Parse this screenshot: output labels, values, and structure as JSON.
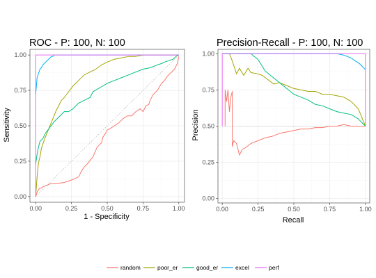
{
  "colors": {
    "random": "#F8766D",
    "poor_er": "#A3A500",
    "good_er": "#00BF7D",
    "excel": "#00B0F6",
    "perf": "#E76BF3",
    "grid_major": "#ebebeb",
    "grid_minor": "#f5f5f5",
    "reference": "#bbbbbb"
  },
  "chart_data": [
    {
      "type": "line",
      "title": "ROC - P: 100, N: 100",
      "xlabel": "1 - Specificity",
      "ylabel": "Sensitivity",
      "xlim": [
        -0.04,
        1.04
      ],
      "ylim": [
        -0.04,
        1.04
      ],
      "xticks": [
        0,
        0.25,
        0.5,
        0.75,
        1
      ],
      "yticks": [
        0,
        0.25,
        0.5,
        0.75,
        1
      ],
      "xtick_labels": [
        "0.00",
        "0.25",
        "0.50",
        "0.75",
        "1.00"
      ],
      "ytick_labels": [
        "0.00",
        "0.25",
        "0.50",
        "0.75",
        "1.00"
      ],
      "reference_line": {
        "style": "dotted",
        "from": [
          0,
          0
        ],
        "to": [
          1,
          1
        ]
      },
      "series": [
        {
          "name": "random",
          "x": [
            0,
            0.01,
            0.02,
            0.03,
            0.04,
            0.05,
            0.08,
            0.1,
            0.13,
            0.2,
            0.26,
            0.3,
            0.32,
            0.34,
            0.36,
            0.4,
            0.43,
            0.46,
            0.47,
            0.49,
            0.5,
            0.52,
            0.55,
            0.58,
            0.61,
            0.64,
            0.67,
            0.7,
            0.73,
            0.75,
            0.77,
            0.79,
            0.8,
            0.82,
            0.85,
            0.88,
            0.9,
            0.92,
            0.95,
            0.97,
            0.99,
            1.0
          ],
          "y": [
            0,
            0.03,
            0.05,
            0.06,
            0.06,
            0.07,
            0.08,
            0.09,
            0.09,
            0.1,
            0.12,
            0.14,
            0.18,
            0.21,
            0.23,
            0.28,
            0.35,
            0.38,
            0.42,
            0.45,
            0.47,
            0.48,
            0.5,
            0.52,
            0.55,
            0.57,
            0.57,
            0.6,
            0.62,
            0.6,
            0.64,
            0.65,
            0.68,
            0.72,
            0.75,
            0.8,
            0.82,
            0.85,
            0.88,
            0.9,
            0.94,
            0.99
          ]
        },
        {
          "name": "poor_er",
          "x": [
            0,
            0.01,
            0.02,
            0.03,
            0.04,
            0.06,
            0.08,
            0.1,
            0.12,
            0.14,
            0.16,
            0.18,
            0.2,
            0.23,
            0.26,
            0.3,
            0.34,
            0.38,
            0.42,
            0.46,
            0.5,
            0.55,
            0.6,
            0.65,
            0.7,
            0.75,
            0.8,
            0.85,
            0.9,
            0.95,
            1.0
          ],
          "y": [
            0,
            0.14,
            0.24,
            0.28,
            0.34,
            0.4,
            0.45,
            0.5,
            0.55,
            0.6,
            0.64,
            0.68,
            0.7,
            0.74,
            0.78,
            0.82,
            0.86,
            0.88,
            0.9,
            0.93,
            0.95,
            0.97,
            0.98,
            0.99,
            0.99,
            1.0,
            1.0,
            1.0,
            1.0,
            1.0,
            1.0
          ]
        },
        {
          "name": "good_er",
          "x": [
            0,
            0.01,
            0.02,
            0.03,
            0.05,
            0.07,
            0.1,
            0.13,
            0.16,
            0.2,
            0.23,
            0.26,
            0.3,
            0.34,
            0.38,
            0.4,
            0.45,
            0.5,
            0.55,
            0.6,
            0.65,
            0.7,
            0.75,
            0.8,
            0.85,
            0.88,
            0.9,
            0.93,
            0.96,
            0.98,
            1.0
          ],
          "y": [
            0.23,
            0.3,
            0.35,
            0.39,
            0.41,
            0.45,
            0.49,
            0.53,
            0.56,
            0.6,
            0.6,
            0.62,
            0.66,
            0.68,
            0.7,
            0.74,
            0.77,
            0.8,
            0.82,
            0.84,
            0.86,
            0.88,
            0.9,
            0.91,
            0.93,
            0.94,
            0.95,
            0.96,
            0.97,
            0.99,
            1.0
          ]
        },
        {
          "name": "excel",
          "x": [
            0,
            0.01,
            0.02,
            0.03,
            0.04,
            0.05,
            0.06,
            0.07,
            0.09,
            0.1,
            0.11,
            0.12,
            0.13,
            0.2,
            0.5,
            1.0
          ],
          "y": [
            0.72,
            0.84,
            0.87,
            0.9,
            0.91,
            0.93,
            0.94,
            0.95,
            0.97,
            0.98,
            0.99,
            0.99,
            1.0,
            1.0,
            1.0,
            1.0
          ]
        },
        {
          "name": "perf",
          "x": [
            0,
            0,
            1
          ],
          "y": [
            0,
            1,
            1
          ]
        }
      ]
    },
    {
      "type": "line",
      "title": "Precision-Recall - P: 100, N: 100",
      "xlabel": "Recall",
      "ylabel": "Precision",
      "xlim": [
        -0.03,
        1.03
      ],
      "ylim": [
        -0.03,
        1.03
      ],
      "xticks": [
        0,
        0.25,
        0.5,
        0.75,
        1
      ],
      "yticks": [
        0,
        0.25,
        0.5,
        0.75,
        1
      ],
      "xtick_labels": [
        "0.00",
        "0.25",
        "0.50",
        "0.75",
        "1.00"
      ],
      "ytick_labels": [
        "0.00",
        "0.25",
        "0.50",
        "0.75",
        "1.00"
      ],
      "reference_line": {
        "style": "dotted",
        "from": [
          0,
          0.5
        ],
        "to": [
          1,
          0.5
        ]
      },
      "series": [
        {
          "name": "random",
          "x": [
            0.02,
            0.02,
            0.03,
            0.04,
            0.05,
            0.06,
            0.07,
            0.07,
            0.08,
            0.1,
            0.12,
            0.14,
            0.16,
            0.2,
            0.25,
            0.3,
            0.35,
            0.4,
            0.45,
            0.5,
            0.55,
            0.6,
            0.65,
            0.7,
            0.75,
            0.8,
            0.85,
            0.9,
            0.95,
            1.0
          ],
          "y": [
            0.5,
            0.75,
            0.67,
            0.75,
            0.6,
            0.7,
            0.74,
            0.36,
            0.4,
            0.38,
            0.3,
            0.34,
            0.35,
            0.38,
            0.4,
            0.42,
            0.43,
            0.45,
            0.46,
            0.47,
            0.48,
            0.48,
            0.49,
            0.49,
            0.5,
            0.5,
            0.51,
            0.5,
            0.5,
            0.5
          ]
        },
        {
          "name": "poor_er",
          "x": [
            0.01,
            0.02,
            0.05,
            0.07,
            0.1,
            0.12,
            0.15,
            0.18,
            0.2,
            0.25,
            0.28,
            0.32,
            0.36,
            0.4,
            0.45,
            0.5,
            0.55,
            0.6,
            0.65,
            0.7,
            0.75,
            0.8,
            0.85,
            0.9,
            0.95,
            1.0
          ],
          "y": [
            1.0,
            1.0,
            1.0,
            0.95,
            0.86,
            0.9,
            0.85,
            0.9,
            0.87,
            0.86,
            0.85,
            0.82,
            0.79,
            0.8,
            0.78,
            0.76,
            0.75,
            0.74,
            0.74,
            0.72,
            0.72,
            0.71,
            0.7,
            0.67,
            0.62,
            0.5
          ]
        },
        {
          "name": "good_er",
          "x": [
            0.0,
            0.1,
            0.2,
            0.25,
            0.3,
            0.35,
            0.4,
            0.45,
            0.5,
            0.55,
            0.6,
            0.65,
            0.7,
            0.75,
            0.8,
            0.85,
            0.9,
            0.95,
            1.0
          ],
          "y": [
            1.0,
            1.0,
            1.0,
            0.96,
            0.88,
            0.84,
            0.8,
            0.76,
            0.72,
            0.7,
            0.68,
            0.65,
            0.64,
            0.62,
            0.6,
            0.59,
            0.58,
            0.55,
            0.5
          ]
        },
        {
          "name": "excel",
          "x": [
            0.0,
            0.3,
            0.6,
            0.8,
            0.85,
            0.9,
            0.93,
            0.96,
            0.98,
            1.0
          ],
          "y": [
            1.0,
            1.0,
            1.0,
            1.0,
            0.99,
            0.97,
            0.95,
            0.93,
            0.91,
            0.89
          ]
        },
        {
          "name": "perf",
          "x": [
            0,
            0,
            1,
            1
          ],
          "y": [
            0.5,
            1,
            1,
            0.5
          ]
        }
      ]
    }
  ],
  "legend": {
    "position": "bottom",
    "items": [
      "random",
      "poor_er",
      "good_er",
      "excel",
      "perf"
    ]
  }
}
